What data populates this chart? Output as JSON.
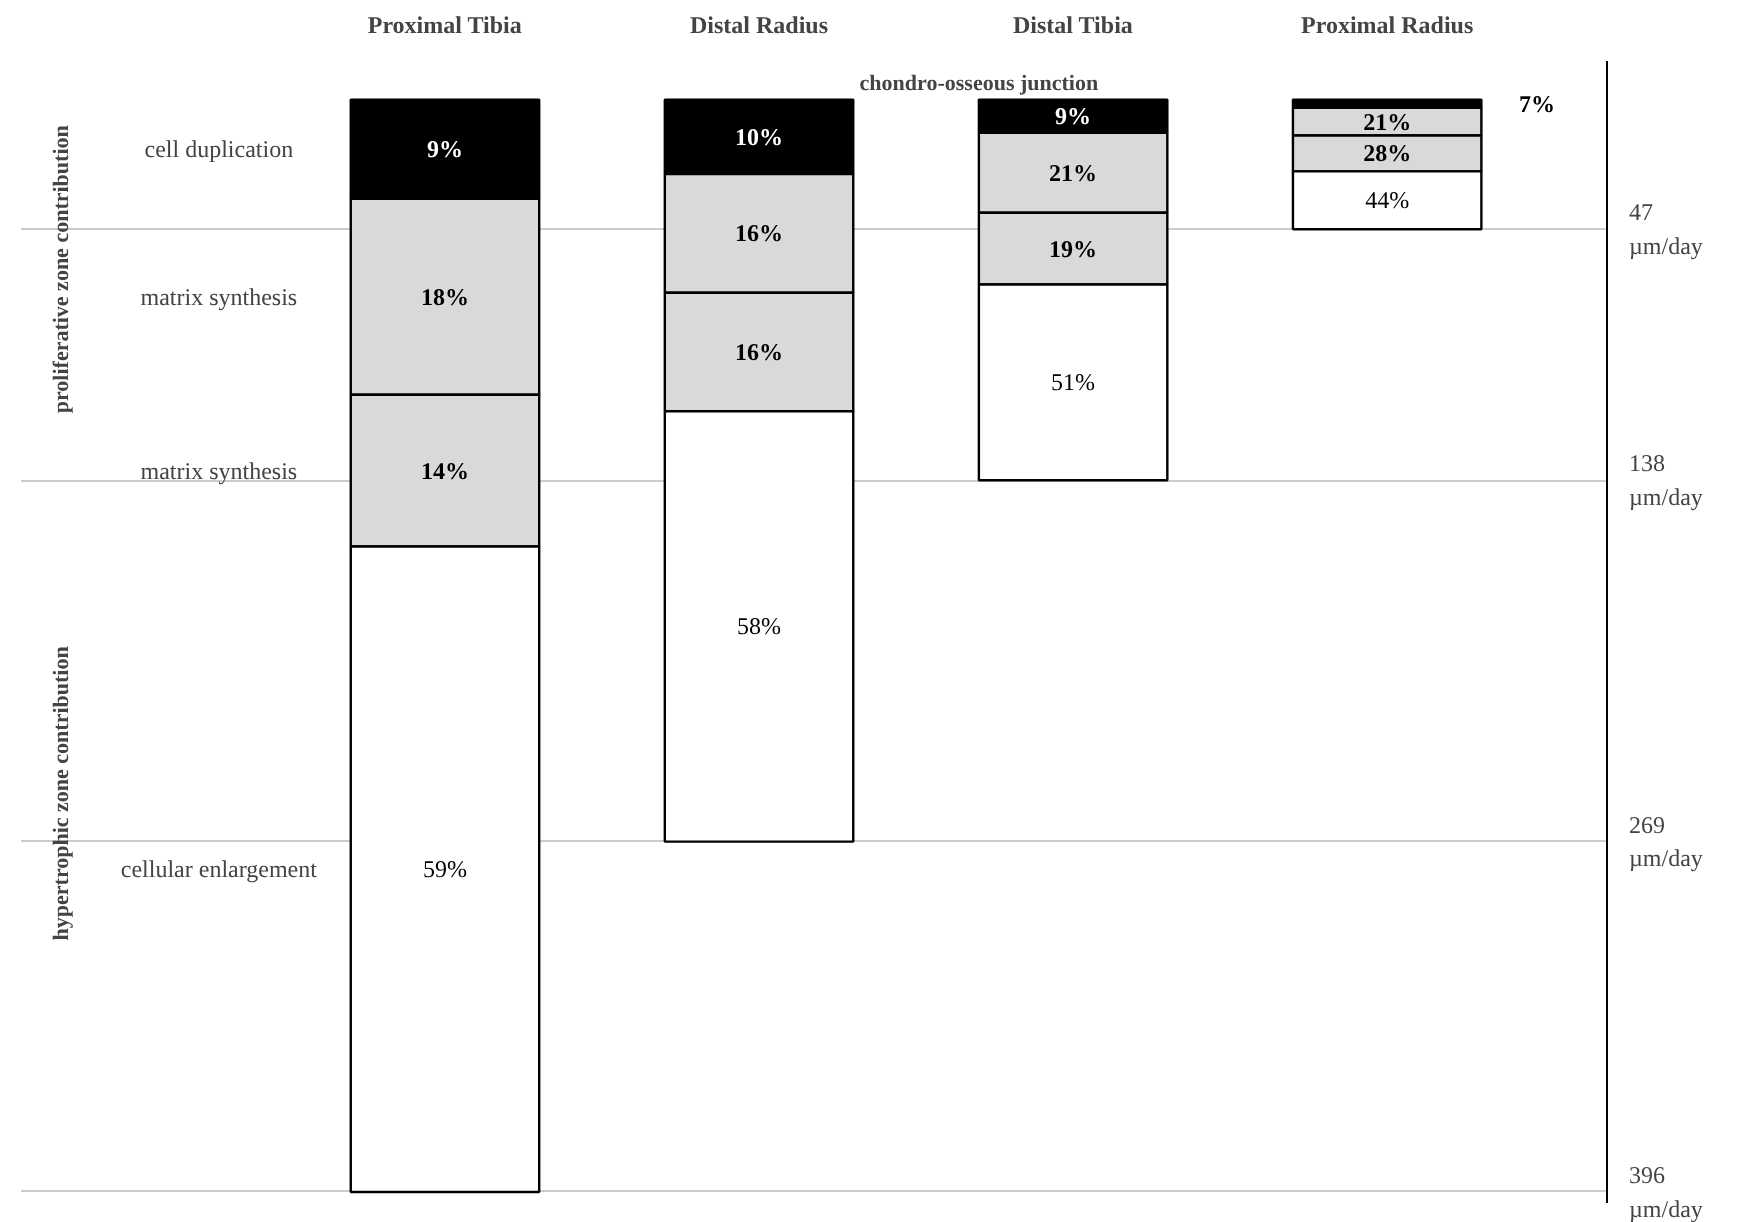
{
  "chart_data": {
    "type": "bar",
    "stacked": true,
    "categories": [
      "Proximal Tibia",
      "Distal Radius",
      "Distal Tibia",
      "Proximal Radius"
    ],
    "series": [
      {
        "name": "cell duplication",
        "color": "#000000",
        "values": [
          36,
          27,
          12,
          3
        ]
      },
      {
        "name": "matrix synthesis",
        "color": "#d9d9d9",
        "values": [
          71,
          43,
          29,
          10
        ]
      },
      {
        "name": "matrix synthesis",
        "color": "#d9d9d9",
        "values": [
          55,
          43,
          26,
          13
        ]
      },
      {
        "name": "cellular enlargement",
        "color": "#ffffff",
        "values": [
          234,
          156,
          71,
          21
        ]
      }
    ],
    "ylim": [
      400,
      -14
    ],
    "yticks": [
      {
        "value": 47,
        "label": "47\nµm/day"
      },
      {
        "value": 138,
        "label": "138\nµm/day"
      },
      {
        "value": 269,
        "label": "269\nµm/day"
      },
      {
        "value": 396,
        "label": "396\nµm/day"
      }
    ],
    "grid": "y",
    "annotations": [
      "chondro-osseous junction",
      "proliferative zone contribution",
      "hypertrophic zone contribution",
      "9%",
      "18%",
      "14%",
      "59%",
      "10%",
      "16%",
      "16%",
      "58%",
      "9%",
      "21%",
      "19%",
      "51%",
      "7%",
      "21%",
      "28%",
      "44%"
    ]
  }
}
